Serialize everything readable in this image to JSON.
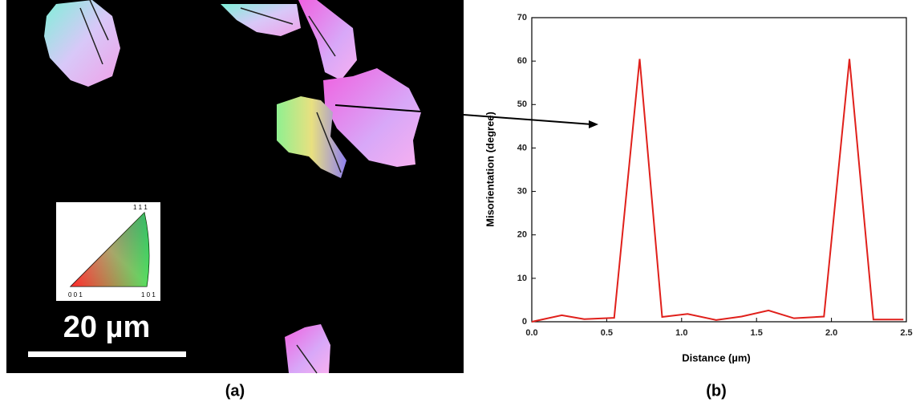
{
  "image_panel": {
    "label": "(a)",
    "scale_bar": "20 µm",
    "ipf_labels": [
      "0 0 1",
      "1 0 1",
      "1 1 1"
    ]
  },
  "chart_data": {
    "type": "line",
    "panel_label": "(b)",
    "x_label": "Distance (µm)",
    "y_label": "Misorientation (degree)",
    "x": [
      0,
      0.2,
      0.35,
      0.55,
      0.72,
      0.87,
      1.04,
      1.23,
      1.4,
      1.58,
      1.75,
      1.95,
      2.12,
      2.28,
      2.48
    ],
    "values": [
      0,
      1.5,
      0.6,
      0.9,
      60.5,
      1.1,
      1.8,
      0.4,
      1.2,
      2.6,
      0.8,
      1.2,
      60.5,
      0.5,
      0.5
    ],
    "color": "#e0201b",
    "xlim": [
      0,
      2.5
    ],
    "xticks": [
      {
        "value": 0,
        "label": "0.0"
      },
      {
        "value": 0.5,
        "label": "0.5"
      },
      {
        "value": 1,
        "label": "1.0"
      },
      {
        "value": 1.5,
        "label": "1.5"
      },
      {
        "value": 2,
        "label": "2.0"
      },
      {
        "value": 2.5,
        "label": "2.5"
      }
    ],
    "ylim": [
      0,
      70
    ],
    "yticks": [
      0,
      10,
      20,
      30,
      40,
      50,
      60,
      70
    ]
  }
}
